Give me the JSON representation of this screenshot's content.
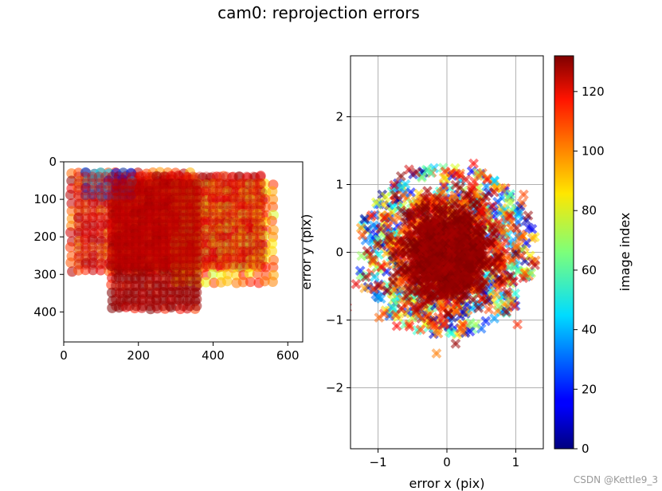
{
  "watermark": "CSDN @Kettle9_3",
  "chart_data": [
    {
      "type": "scatter",
      "title": "cam0: reprojection errors",
      "subplot": "left",
      "xlabel": "",
      "ylabel": "",
      "xlim": [
        0,
        640
      ],
      "ylim": [
        480,
        0
      ],
      "y_inverted": true,
      "xticks": [
        0,
        200,
        400,
        600
      ],
      "yticks": [
        0,
        100,
        200,
        300,
        400
      ],
      "marker": "circle",
      "color_by": "image index",
      "regions": [
        {
          "x": [
            20,
            340
          ],
          "y": [
            30,
            290
          ],
          "index": 110
        },
        {
          "x": [
            130,
            350
          ],
          "y": [
            50,
            400
          ],
          "index": 125
        },
        {
          "x": [
            130,
            540
          ],
          "y": [
            40,
            290
          ],
          "index": 120
        },
        {
          "x": [
            300,
            560
          ],
          "y": [
            60,
            320
          ],
          "index": 95
        },
        {
          "x": [
            60,
            190
          ],
          "y": [
            30,
            100
          ],
          "index": 30
        }
      ]
    },
    {
      "type": "scatter",
      "subplot": "right",
      "xlabel": "error x (pix)",
      "ylabel": "error y (pix)",
      "xlim": [
        -1.4,
        1.4
      ],
      "ylim": [
        -2.9,
        2.9
      ],
      "xticks": [
        -1,
        0,
        1
      ],
      "yticks": [
        -2,
        -1,
        0,
        1,
        2
      ],
      "grid": true,
      "marker": "x",
      "color_by": "image index",
      "cloud_center": [
        0.0,
        0.0
      ],
      "cloud_extent_x": [
        -1.3,
        1.3
      ],
      "cloud_extent_y": [
        -1.3,
        1.4
      ]
    }
  ],
  "colorbar": {
    "label": "image index",
    "colormap": "jet",
    "range": [
      0,
      132
    ],
    "ticks": [
      0,
      20,
      40,
      60,
      80,
      100,
      120
    ]
  }
}
